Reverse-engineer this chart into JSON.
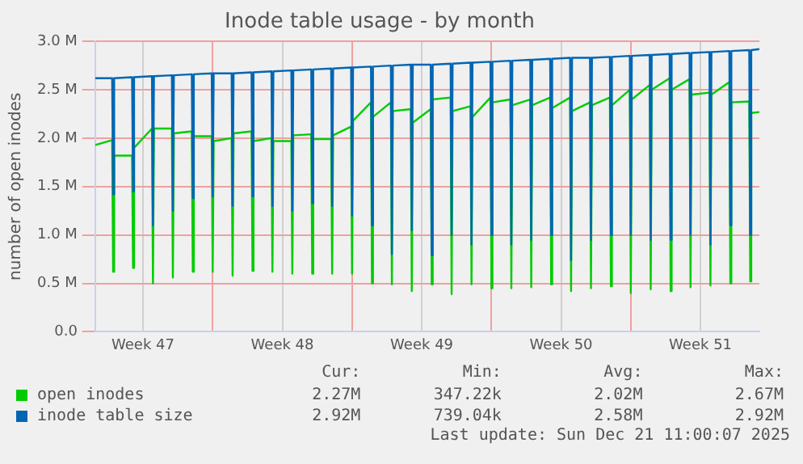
{
  "chart_data": {
    "type": "line",
    "title": "Inode table usage - by month",
    "ylabel": "number of open inodes",
    "x": [
      "2025-11-18T02:24",
      "2025-11-18T22:48",
      "2025-11-19T00:00",
      "2025-11-19T01:12",
      "2025-11-19T22:48",
      "2025-11-20T00:00",
      "2025-11-20T01:12",
      "2025-11-20T22:48",
      "2025-11-21T00:00",
      "2025-11-21T01:12",
      "2025-11-21T22:48",
      "2025-11-22T00:00",
      "2025-11-22T01:12",
      "2025-11-22T22:48",
      "2025-11-23T00:00",
      "2025-11-23T01:12",
      "2025-11-23T22:48",
      "2025-11-24T00:00",
      "2025-11-24T01:12",
      "2025-11-24T22:48",
      "2025-11-25T00:00",
      "2025-11-25T01:12",
      "2025-11-25T22:48",
      "2025-11-26T00:00",
      "2025-11-26T01:12",
      "2025-11-26T22:48",
      "2025-11-27T00:00",
      "2025-11-27T01:12",
      "2025-11-27T22:48",
      "2025-11-28T00:00",
      "2025-11-28T01:12",
      "2025-11-28T22:48",
      "2025-11-29T00:00",
      "2025-11-29T01:12",
      "2025-11-29T22:48",
      "2025-11-30T00:00",
      "2025-11-30T01:12",
      "2025-11-30T22:48",
      "2025-12-01T00:00",
      "2025-12-01T01:12",
      "2025-12-01T22:48",
      "2025-12-02T00:00",
      "2025-12-02T01:12",
      "2025-12-02T22:48",
      "2025-12-03T00:00",
      "2025-12-03T01:12",
      "2025-12-03T22:48",
      "2025-12-04T00:00",
      "2025-12-04T01:12",
      "2025-12-04T22:48",
      "2025-12-05T00:00",
      "2025-12-05T01:12",
      "2025-12-05T22:48",
      "2025-12-06T00:00",
      "2025-12-06T01:12",
      "2025-12-06T22:48",
      "2025-12-07T00:00",
      "2025-12-07T01:12",
      "2025-12-07T22:48",
      "2025-12-08T00:00",
      "2025-12-08T01:12",
      "2025-12-08T22:48",
      "2025-12-09T00:00",
      "2025-12-09T01:12",
      "2025-12-09T22:48",
      "2025-12-10T00:00",
      "2025-12-10T01:12",
      "2025-12-10T22:48",
      "2025-12-11T00:00",
      "2025-12-11T01:12",
      "2025-12-11T22:48",
      "2025-12-12T00:00",
      "2025-12-12T01:12",
      "2025-12-12T22:48",
      "2025-12-13T00:00",
      "2025-12-13T01:12",
      "2025-12-13T22:48",
      "2025-12-14T00:00",
      "2025-12-14T01:12",
      "2025-12-14T22:48",
      "2025-12-15T00:00",
      "2025-12-15T01:12",
      "2025-12-15T22:48",
      "2025-12-16T00:00",
      "2025-12-16T01:12",
      "2025-12-16T22:48",
      "2025-12-17T00:00",
      "2025-12-17T01:12",
      "2025-12-17T22:48",
      "2025-12-18T00:00",
      "2025-12-18T01:12",
      "2025-12-18T22:48",
      "2025-12-19T00:00",
      "2025-12-19T01:12",
      "2025-12-19T22:48",
      "2025-12-20T00:00",
      "2025-12-20T01:12",
      "2025-12-20T22:48",
      "2025-12-21T00:00",
      "2025-12-21T01:12",
      "2025-12-21T11:00"
    ],
    "series": [
      {
        "name": "open inodes",
        "color": "#00cc00",
        "values": [
          1.93,
          1.98,
          0.62,
          1.82,
          1.82,
          0.66,
          1.9,
          2.1,
          0.5,
          2.1,
          2.1,
          0.56,
          2.05,
          2.07,
          0.62,
          2.02,
          2.02,
          0.62,
          1.97,
          2.0,
          0.58,
          2.05,
          2.07,
          0.63,
          1.97,
          2.0,
          0.62,
          1.97,
          1.97,
          0.6,
          2.03,
          2.04,
          0.6,
          1.99,
          1.99,
          0.6,
          2.03,
          2.12,
          0.6,
          2.18,
          2.37,
          0.5,
          2.22,
          2.37,
          0.49,
          2.28,
          2.3,
          0.42,
          2.16,
          2.3,
          0.49,
          2.4,
          2.42,
          0.39,
          2.28,
          2.33,
          0.49,
          2.22,
          2.42,
          0.45,
          2.37,
          2.4,
          0.45,
          2.34,
          2.4,
          0.46,
          2.34,
          2.42,
          0.49,
          2.31,
          2.42,
          0.42,
          2.28,
          2.37,
          0.45,
          2.34,
          2.42,
          0.47,
          2.34,
          2.5,
          0.4,
          2.4,
          2.55,
          0.44,
          2.5,
          2.62,
          0.42,
          2.5,
          2.61,
          0.46,
          2.45,
          2.47,
          0.48,
          2.45,
          2.58,
          0.5,
          2.37,
          2.38,
          0.52,
          2.26,
          2.27
        ]
      },
      {
        "name": "inode table size",
        "color": "#0066b3",
        "values": [
          2.62,
          2.62,
          1.42,
          2.62,
          2.63,
          1.45,
          2.63,
          2.64,
          1.1,
          2.64,
          2.65,
          1.25,
          2.65,
          2.66,
          1.38,
          2.66,
          2.67,
          1.4,
          2.67,
          2.67,
          1.3,
          2.67,
          2.68,
          1.4,
          2.68,
          2.69,
          1.3,
          2.69,
          2.7,
          1.25,
          2.7,
          2.71,
          1.33,
          2.71,
          2.72,
          1.3,
          2.72,
          2.73,
          1.2,
          2.73,
          2.74,
          1.1,
          2.74,
          2.75,
          0.8,
          2.75,
          2.76,
          1.05,
          2.76,
          2.76,
          0.79,
          2.76,
          2.77,
          1.0,
          2.77,
          2.78,
          0.9,
          2.78,
          2.79,
          1.0,
          2.79,
          2.8,
          0.9,
          2.8,
          2.81,
          0.95,
          2.81,
          2.82,
          1.0,
          2.82,
          2.83,
          0.74,
          2.83,
          2.83,
          0.95,
          2.83,
          2.84,
          1.0,
          2.84,
          2.85,
          1.0,
          2.85,
          2.86,
          0.95,
          2.86,
          2.87,
          0.95,
          2.87,
          2.88,
          1.0,
          2.88,
          2.89,
          0.9,
          2.89,
          2.9,
          1.1,
          2.9,
          2.91,
          1.0,
          2.91,
          2.92
        ]
      }
    ],
    "xlim": [
      "2025-11-18T02:24",
      "2025-12-21T11:00"
    ],
    "xticks": [
      {
        "value": "2025-11-20T12:00",
        "label": "Week 47"
      },
      {
        "value": "2025-11-24",
        "label": null
      },
      {
        "value": "2025-11-27T12:00",
        "label": "Week 48"
      },
      {
        "value": "2025-12-01",
        "label": null
      },
      {
        "value": "2025-12-04T12:00",
        "label": "Week 49"
      },
      {
        "value": "2025-12-08",
        "label": null
      },
      {
        "value": "2025-12-11T12:00",
        "label": "Week 50"
      },
      {
        "value": "2025-12-15",
        "label": null
      },
      {
        "value": "2025-12-18T12:00",
        "label": "Week 51"
      }
    ],
    "ylim": [
      0,
      3.0
    ],
    "yticks": [
      {
        "value": 0,
        "label": "0.0"
      },
      {
        "value": 0.5,
        "label": "0.5 M"
      },
      {
        "value": 1.0,
        "label": "1.0 M"
      },
      {
        "value": 1.5,
        "label": "1.5 M"
      },
      {
        "value": 2.0,
        "label": "2.0 M"
      },
      {
        "value": 2.5,
        "label": "2.5 M"
      },
      {
        "value": 3.0,
        "label": "3.0 M"
      }
    ],
    "grid": true,
    "legend": "bottom left",
    "marker": "none",
    "line_style": "solid",
    "annotations": [
      "Cur:",
      "Min:",
      "Avg:",
      "Max:",
      "2.27M",
      "347.22k",
      "2.02M",
      "2.67M",
      "2.92M",
      "739.04k",
      "2.58M",
      "2.92M",
      "Last update: Sun Dec 21 11:00:07 2025"
    ]
  }
}
